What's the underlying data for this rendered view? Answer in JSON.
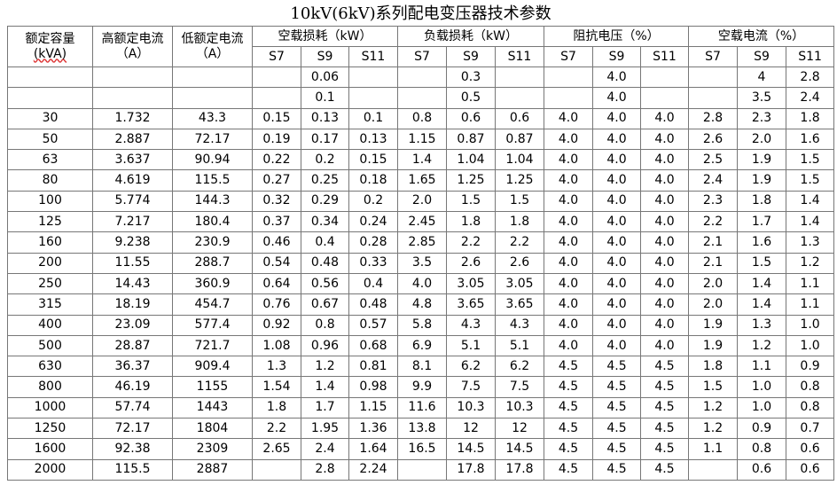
{
  "title": "10kV(6kV)系列配电变压器技术参数",
  "header": {
    "fixed_columns": [
      [
        "额定容量",
        "(kVA)"
      ],
      [
        "高额定电流",
        "（A）"
      ],
      [
        "低额定电流",
        "（A）"
      ]
    ],
    "groups": [
      "空载损耗（kW）",
      "负载损耗（kW）",
      "阻抗电压（%）",
      "空载电流（%）"
    ],
    "subcolumns": [
      "S7",
      "S9",
      "S11",
      "S7",
      "S9",
      "S11",
      "S7",
      "S9",
      "S11",
      "S7",
      "S9",
      "S11"
    ]
  },
  "table": {
    "rows": [
      [
        null,
        null,
        null,
        null,
        "0.06",
        null,
        null,
        "0.3",
        null,
        null,
        "4.0",
        null,
        null,
        "4",
        "2.8"
      ],
      [
        null,
        null,
        null,
        null,
        "0.1",
        null,
        null,
        "0.5",
        null,
        null,
        "4.0",
        null,
        null,
        "3.5",
        "2.4"
      ],
      [
        "30",
        "1.732",
        "43.3",
        "0.15",
        "0.13",
        "0.1",
        "0.8",
        "0.6",
        "0.6",
        "4.0",
        "4.0",
        "4.0",
        "2.8",
        "2.3",
        "1.8"
      ],
      [
        "50",
        "2.887",
        "72.17",
        "0.19",
        "0.17",
        "0.13",
        "1.15",
        "0.87",
        "0.87",
        "4.0",
        "4.0",
        "4.0",
        "2.6",
        "2.0",
        "1.6"
      ],
      [
        "63",
        "3.637",
        "90.94",
        "0.22",
        "0.2",
        "0.15",
        "1.4",
        "1.04",
        "1.04",
        "4.0",
        "4.0",
        "4.0",
        "2.5",
        "1.9",
        "1.5"
      ],
      [
        "80",
        "4.619",
        "115.5",
        "0.27",
        "0.25",
        "0.18",
        "1.65",
        "1.25",
        "1.25",
        "4.0",
        "4.0",
        "4.0",
        "2.4",
        "1.9",
        "1.5"
      ],
      [
        "100",
        "5.774",
        "144.3",
        "0.32",
        "0.29",
        "0.2",
        "2.0",
        "1.5",
        "1.5",
        "4.0",
        "4.0",
        "4.0",
        "2.3",
        "1.8",
        "1.4"
      ],
      [
        "125",
        "7.217",
        "180.4",
        "0.37",
        "0.34",
        "0.24",
        "2.45",
        "1.8",
        "1.8",
        "4.0",
        "4.0",
        "4.0",
        "2.2",
        "1.7",
        "1.4"
      ],
      [
        "160",
        "9.238",
        "230.9",
        "0.46",
        "0.4",
        "0.28",
        "2.85",
        "2.2",
        "2.2",
        "4.0",
        "4.0",
        "4.0",
        "2.1",
        "1.6",
        "1.3"
      ],
      [
        "200",
        "11.55",
        "288.7",
        "0.54",
        "0.48",
        "0.33",
        "3.5",
        "2.6",
        "2.6",
        "4.0",
        "4.0",
        "4.0",
        "2.1",
        "1.5",
        "1.2"
      ],
      [
        "250",
        "14.43",
        "360.9",
        "0.64",
        "0.56",
        "0.4",
        "4.0",
        "3.05",
        "3.05",
        "4.0",
        "4.0",
        "4.0",
        "2.0",
        "1.4",
        "1.1"
      ],
      [
        "315",
        "18.19",
        "454.7",
        "0.76",
        "0.67",
        "0.48",
        "4.8",
        "3.65",
        "3.65",
        "4.0",
        "4.0",
        "4.0",
        "2.0",
        "1.4",
        "1.1"
      ],
      [
        "400",
        "23.09",
        "577.4",
        "0.92",
        "0.8",
        "0.57",
        "5.8",
        "4.3",
        "4.3",
        "4.0",
        "4.0",
        "4.0",
        "1.9",
        "1.3",
        "1.0"
      ],
      [
        "500",
        "28.87",
        "721.7",
        "1.08",
        "0.96",
        "0.68",
        "6.9",
        "5.1",
        "5.1",
        "4.0",
        "4.0",
        "4.0",
        "1.9",
        "1.2",
        "1.0"
      ],
      [
        "630",
        "36.37",
        "909.4",
        "1.3",
        "1.2",
        "0.81",
        "8.1",
        "6.2",
        "6.2",
        "4.5",
        "4.5",
        "4.5",
        "1.8",
        "1.1",
        "0.9"
      ],
      [
        "800",
        "46.19",
        "1155",
        "1.54",
        "1.4",
        "0.98",
        "9.9",
        "7.5",
        "7.5",
        "4.5",
        "4.5",
        "4.5",
        "1.5",
        "1.0",
        "0.8"
      ],
      [
        "1000",
        "57.74",
        "1443",
        "1.8",
        "1.7",
        "1.15",
        "11.6",
        "10.3",
        "10.3",
        "4.5",
        "4.5",
        "4.5",
        "1.2",
        "1.0",
        "0.8"
      ],
      [
        "1250",
        "72.17",
        "1804",
        "2.2",
        "1.95",
        "1.36",
        "13.8",
        "12",
        "12",
        "4.5",
        "4.5",
        "4.5",
        "1.2",
        "0.9",
        "0.7"
      ],
      [
        "1600",
        "92.38",
        "2309",
        "2.65",
        "2.4",
        "1.64",
        "16.5",
        "14.5",
        "14.5",
        "4.5",
        "4.5",
        "4.5",
        "1.1",
        "0.8",
        "0.6"
      ],
      [
        "2000",
        "115.5",
        "2887",
        null,
        "2.8",
        "2.24",
        null,
        "17.8",
        "17.8",
        "4.5",
        "4.5",
        "4.5",
        null,
        "0.6",
        "0.6"
      ]
    ]
  }
}
